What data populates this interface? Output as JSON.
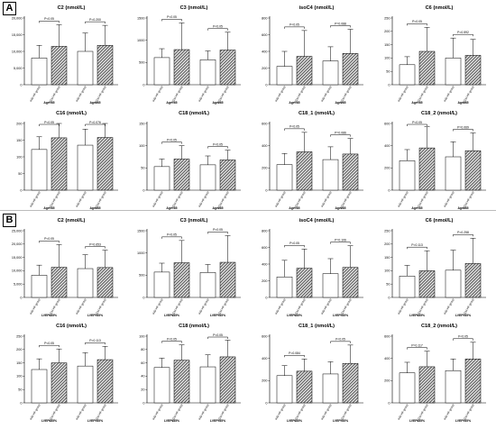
{
  "panels": [
    {
      "label": "A",
      "group_label_left": "Age<65",
      "group_label_right": "Age≥65"
    },
    {
      "label": "B",
      "group_label_left": "LVEF≤35%",
      "group_label_right": "LVEF>35%"
    }
  ],
  "colors": {
    "ihd_fill": "#ffffff",
    "dcm_fill": "#6a6a6a",
    "axis": "#000000"
  },
  "chart_data": [
    {
      "panel": "A",
      "type": "bar",
      "title": "C2 (nmol/L)",
      "ylim": [
        0,
        20000
      ],
      "yticks": [
        "0",
        "5,000",
        "10,000",
        "15,000",
        "20,000"
      ],
      "categories": [
        "IHD-HF group",
        "DCM-HF group",
        "IHD-HF group",
        "DCM-HF group"
      ],
      "groups": [
        "Age<65",
        "Age≥65"
      ],
      "pvalues": [
        "P<0.05",
        "P=0.200"
      ],
      "values": [
        8000,
        11500,
        10000,
        11800
      ],
      "errors": [
        3800,
        6500,
        5500,
        6000
      ]
    },
    {
      "panel": "A",
      "type": "bar",
      "title": "C3 (nmol/L)",
      "ylim": [
        0,
        1500
      ],
      "yticks": [
        "0",
        "500",
        "1000",
        "1500"
      ],
      "categories": [
        "IHD-HF group",
        "DCM-HF group",
        "IHD-HF group",
        "DCM-HF group"
      ],
      "groups": [
        "Age<65",
        "Age≥65"
      ],
      "pvalues": [
        "P<0.05",
        "P<0.05"
      ],
      "values": [
        610,
        790,
        560,
        780
      ],
      "errors": [
        200,
        600,
        200,
        400
      ]
    },
    {
      "panel": "A",
      "type": "bar",
      "title": "isoC4 (nmol/L)",
      "ylim": [
        0,
        800
      ],
      "yticks": [
        "0",
        "200",
        "400",
        "600",
        "800"
      ],
      "categories": [
        "IHD-HF group",
        "DCM-HF group",
        "IHD-HF group",
        "DCM-HF group"
      ],
      "groups": [
        "Age<65",
        "Age≥65"
      ],
      "pvalues": [
        "P<0.05",
        "P=0.088"
      ],
      "values": [
        220,
        340,
        285,
        375
      ],
      "errors": [
        180,
        310,
        170,
        290
      ]
    },
    {
      "panel": "A",
      "type": "bar",
      "title": "C6 (nmol/L)",
      "ylim": [
        0,
        250
      ],
      "yticks": [
        "0",
        "50",
        "100",
        "150",
        "200",
        "250"
      ],
      "categories": [
        "IHD-HF group",
        "DCM-HF group",
        "IHD-HF group",
        "DCM-HF group"
      ],
      "groups": [
        "Age<65",
        "Age≥65"
      ],
      "pvalues": [
        "P<0.05",
        "P=0.592"
      ],
      "values": [
        75,
        125,
        100,
        110
      ],
      "errors": [
        30,
        90,
        75,
        60
      ]
    },
    {
      "panel": "A",
      "type": "bar",
      "title": "C16 (nmol/L)",
      "ylim": [
        0,
        200
      ],
      "yticks": [
        "0",
        "50",
        "100",
        "150",
        "200"
      ],
      "categories": [
        "IHD-HF group",
        "DCM-HF group",
        "IHD-HF group",
        "DCM-HF group"
      ],
      "groups": [
        "Age<65",
        "Age≥65"
      ],
      "pvalues": [
        "P<0.05",
        "P=0.076"
      ],
      "values": [
        122,
        157,
        135,
        158
      ],
      "errors": [
        38,
        50,
        48,
        42
      ]
    },
    {
      "panel": "A",
      "type": "bar",
      "title": "C18 (nmol/L)",
      "ylim": [
        0,
        150
      ],
      "yticks": [
        "0",
        "50",
        "100",
        "150"
      ],
      "categories": [
        "IHD-HF group",
        "DCM-HF group",
        "IHD-HF group",
        "DCM-HF group"
      ],
      "groups": [
        "Age<65",
        "Age≥65"
      ],
      "pvalues": [
        "P<0.05",
        "P<0.05"
      ],
      "values": [
        53,
        70,
        57,
        68
      ],
      "errors": [
        17,
        30,
        20,
        22
      ]
    },
    {
      "panel": "A",
      "type": "bar",
      "title": "C18_1 (nmol/L)",
      "ylim": [
        0,
        600
      ],
      "yticks": [
        "0",
        "200",
        "400",
        "600"
      ],
      "categories": [
        "IHD-HF group",
        "DCM-HF group",
        "IHD-HF group",
        "DCM-HF group"
      ],
      "groups": [
        "Age<65",
        "Age≥65"
      ],
      "pvalues": [
        "P<0.05",
        "P=0.086"
      ],
      "values": [
        230,
        345,
        275,
        325
      ],
      "errors": [
        100,
        175,
        115,
        140
      ]
    },
    {
      "panel": "A",
      "type": "bar",
      "title": "C18_2 (nmol/L)",
      "ylim": [
        0,
        600
      ],
      "yticks": [
        "0",
        "200",
        "400",
        "600"
      ],
      "categories": [
        "IHD-HF group",
        "DCM-HF group",
        "IHD-HF group",
        "DCM-HF group"
      ],
      "groups": [
        "Age<65",
        "Age≥65"
      ],
      "pvalues": [
        "P<0.05",
        "P=0.069"
      ],
      "values": [
        265,
        380,
        300,
        355
      ],
      "errors": [
        100,
        190,
        135,
        160
      ]
    },
    {
      "panel": "B",
      "type": "bar",
      "title": "C2 (nmol/L)",
      "ylim": [
        0,
        25000
      ],
      "yticks": [
        "0",
        "5,000",
        "10,000",
        "15,000",
        "20,000",
        "25,000"
      ],
      "categories": [
        "IHD-HF group",
        "DCM-HF group",
        "IHD-HF group",
        "DCM-HF group"
      ],
      "groups": [
        "LVEF≤35%",
        "LVEF>35%"
      ],
      "pvalues": [
        "P<0.05",
        "P=0.653"
      ],
      "values": [
        8300,
        11300,
        10800,
        11200
      ],
      "errors": [
        3800,
        8500,
        5200,
        6500
      ]
    },
    {
      "panel": "B",
      "type": "bar",
      "title": "C3 (nmol/L)",
      "ylim": [
        0,
        1500
      ],
      "yticks": [
        "0",
        "500",
        "1000",
        "1500"
      ],
      "categories": [
        "IHD-HF group",
        "DCM-HF group",
        "IHD-HF group",
        "DCM-HF group"
      ],
      "groups": [
        "LVEF≤35%",
        "LVEF>35%"
      ],
      "pvalues": [
        "P<0.05",
        "P<0.05"
      ],
      "values": [
        570,
        780,
        560,
        790
      ],
      "errors": [
        200,
        500,
        180,
        600
      ]
    },
    {
      "panel": "B",
      "type": "bar",
      "title": "isoC4 (nmol/L)",
      "ylim": [
        0,
        800
      ],
      "yticks": [
        "0",
        "200",
        "400",
        "600",
        "800"
      ],
      "categories": [
        "IHD-HF group",
        "DCM-HF group",
        "IHD-HF group",
        "DCM-HF group"
      ],
      "groups": [
        "LVEF≤35%",
        "LVEF>35%"
      ],
      "pvalues": [
        "P<0.05",
        "P=0.106"
      ],
      "values": [
        245,
        350,
        285,
        360
      ],
      "errors": [
        200,
        230,
        180,
        260
      ]
    },
    {
      "panel": "B",
      "type": "bar",
      "title": "C6 (nmol/L)",
      "ylim": [
        0,
        250
      ],
      "yticks": [
        "0",
        "50",
        "100",
        "150",
        "200",
        "250"
      ],
      "categories": [
        "IHD-HF group",
        "DCM-HF group",
        "IHD-HF group",
        "DCM-HF group"
      ],
      "groups": [
        "LVEF≤35%",
        "LVEF>35%"
      ],
      "pvalues": [
        "P=0.113",
        "P=0.258"
      ],
      "values": [
        80,
        100,
        102,
        127
      ],
      "errors": [
        40,
        75,
        75,
        95
      ]
    },
    {
      "panel": "B",
      "type": "bar",
      "title": "C16 (nmol/L)",
      "ylim": [
        0,
        250
      ],
      "yticks": [
        "0",
        "50",
        "100",
        "150",
        "200",
        "250"
      ],
      "categories": [
        "IHD-HF group",
        "DCM-HF group",
        "IHD-HF group",
        "DCM-HF group"
      ],
      "groups": [
        "LVEF≤35%",
        "LVEF>35%"
      ],
      "pvalues": [
        "P<0.05",
        "P=0.113"
      ],
      "values": [
        125,
        150,
        138,
        162
      ],
      "errors": [
        40,
        52,
        50,
        50
      ]
    },
    {
      "panel": "B",
      "type": "bar",
      "title": "C18 (nmol/L)",
      "ylim": [
        0,
        100
      ],
      "yticks": [
        "0",
        "20",
        "40",
        "60",
        "80",
        "100"
      ],
      "categories": [
        "IHD-HF group",
        "DCM-HF group",
        "IHD-HF group",
        "DCM-HF group"
      ],
      "groups": [
        "LVEF≤35%",
        "LVEF>35%"
      ],
      "pvalues": [
        "P<0.05",
        "P<0.05"
      ],
      "values": [
        53,
        64,
        54,
        69
      ],
      "errors": [
        14,
        23,
        18,
        25
      ]
    },
    {
      "panel": "B",
      "type": "bar",
      "title": "C18_1 (nmol/L)",
      "ylim": [
        0,
        600
      ],
      "yticks": [
        "0",
        "200",
        "400",
        "600"
      ],
      "categories": [
        "IHD-HF group",
        "DCM-HF group",
        "IHD-HF group",
        "DCM-HF group"
      ],
      "groups": [
        "LVEF≤35%",
        "LVEF>35%"
      ],
      "pvalues": [
        "P=0.084",
        "P<0.05"
      ],
      "values": [
        245,
        285,
        260,
        355
      ],
      "errors": [
        90,
        110,
        110,
        165
      ]
    },
    {
      "panel": "B",
      "type": "bar",
      "title": "C18_2 (nmol/L)",
      "ylim": [
        0,
        600
      ],
      "yticks": [
        "0",
        "200",
        "400",
        "600"
      ],
      "categories": [
        "IHD-HF group",
        "DCM-HF group",
        "IHD-HF group",
        "DCM-HF group"
      ],
      "groups": [
        "LVEF≤35%",
        "LVEF>35%"
      ],
      "pvalues": [
        "P=0.117",
        "P<0.05"
      ],
      "values": [
        270,
        325,
        290,
        395
      ],
      "errors": [
        95,
        140,
        105,
        150
      ]
    }
  ]
}
